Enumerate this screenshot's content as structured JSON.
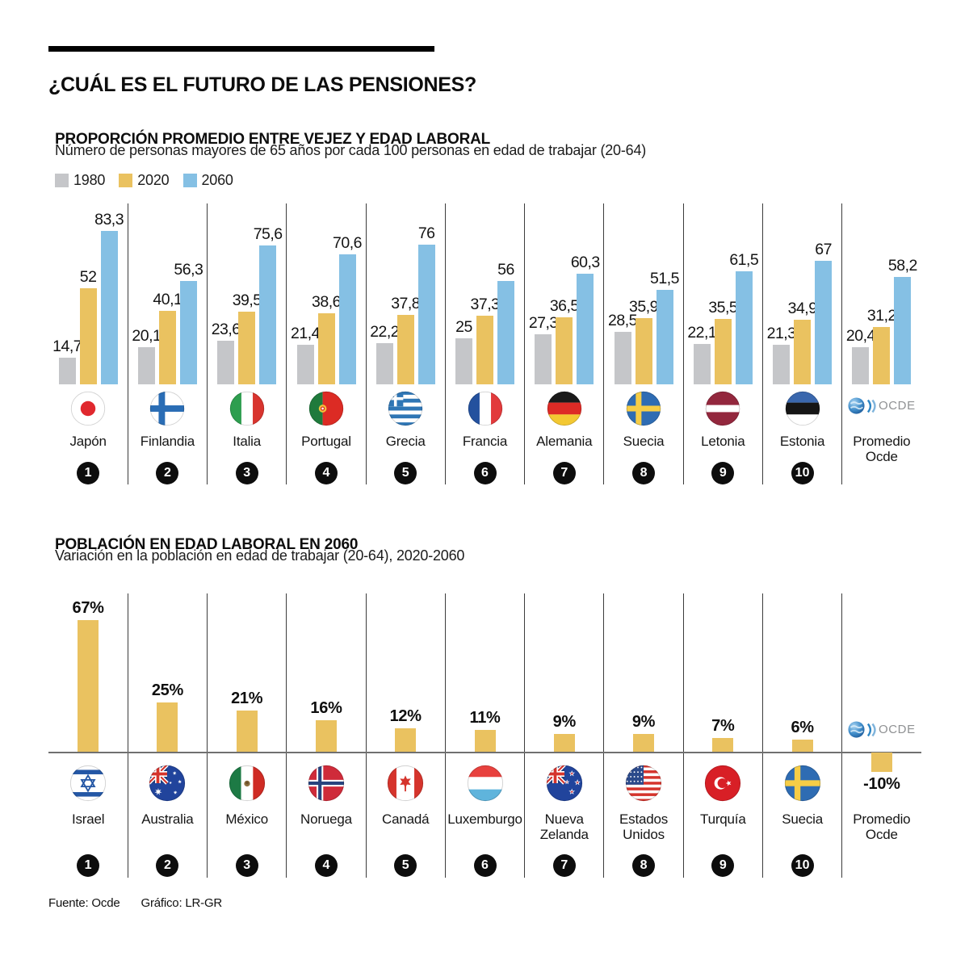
{
  "page": {
    "title": "¿CUÁL ES EL FUTURO DE LAS PENSIONES?",
    "footer": {
      "source": "Fuente: Ocde",
      "credit": "Gráfico: LR-GR"
    },
    "ocde_logo_text": "OCDE"
  },
  "colors": {
    "bar_1980": "#c5c6c9",
    "bar_2020": "#eac260",
    "bar_2060": "#85c0e4",
    "separator": "#3c3c3c",
    "baseline": "#707070",
    "rank_circle": "#0d0d0d"
  },
  "chart_data": [
    {
      "type": "bar",
      "title": "PROPORCIÓN PROMEDIO ENTRE VEJEZ Y EDAD LABORAL",
      "subtitle": "Número de personas mayores de 65 años por cada 100 personas en edad de trabajar (20-64)",
      "legend": [
        {
          "label": "1980",
          "color": "#c5c6c9"
        },
        {
          "label": "2020",
          "color": "#eac260"
        },
        {
          "label": "2060",
          "color": "#85c0e4"
        }
      ],
      "legend_position": "top-left",
      "grid": false,
      "ylim": [
        0,
        90
      ],
      "decimal_separator": ",",
      "categories": [
        "Japón",
        "Finlandia",
        "Italia",
        "Portugal",
        "Grecia",
        "Francia",
        "Alemania",
        "Suecia",
        "Letonia",
        "Estonia",
        "Promedio Ocde"
      ],
      "flags": [
        "japan",
        "finland",
        "italy",
        "portugal",
        "greece",
        "france",
        "germany",
        "sweden",
        "latvia",
        "estonia",
        "ocde"
      ],
      "ranks": [
        "1",
        "2",
        "3",
        "4",
        "5",
        "6",
        "7",
        "8",
        "9",
        "10",
        ""
      ],
      "series": [
        {
          "name": "1980",
          "values": [
            14.7,
            20.1,
            23.6,
            21.4,
            22.2,
            25,
            27.3,
            28.5,
            22.1,
            21.3,
            20.4
          ]
        },
        {
          "name": "2020",
          "values": [
            52,
            40.1,
            39.5,
            38.6,
            37.8,
            37.3,
            36.5,
            35.9,
            35.5,
            34.9,
            31.2
          ]
        },
        {
          "name": "2060",
          "values": [
            83.3,
            56.3,
            75.6,
            70.6,
            76,
            56,
            60.3,
            51.5,
            61.5,
            67,
            58.2
          ]
        }
      ]
    },
    {
      "type": "bar",
      "title": "POBLACIÓN EN EDAD LABORAL EN 2060",
      "subtitle": "Variación en la población en edad de trabajar (20-64), 2020-2060",
      "unit": "%",
      "grid": false,
      "ylim": [
        -15,
        70
      ],
      "bar_color": "#eac260",
      "categories": [
        "Israel",
        "Australia",
        "México",
        "Noruega",
        "Canadá",
        "Luxemburgo",
        "Nueva Zelanda",
        "Estados Unidos",
        "Turquía",
        "Suecia",
        "Promedio Ocde"
      ],
      "flags": [
        "israel",
        "australia",
        "mexico",
        "norway",
        "canada",
        "luxembourg",
        "new_zealand",
        "usa",
        "turkey",
        "sweden",
        "ocde"
      ],
      "ranks": [
        "1",
        "2",
        "3",
        "4",
        "5",
        "6",
        "7",
        "8",
        "9",
        "10",
        ""
      ],
      "values": [
        67,
        25,
        21,
        16,
        12,
        11,
        9,
        9,
        7,
        6,
        -10
      ]
    }
  ]
}
